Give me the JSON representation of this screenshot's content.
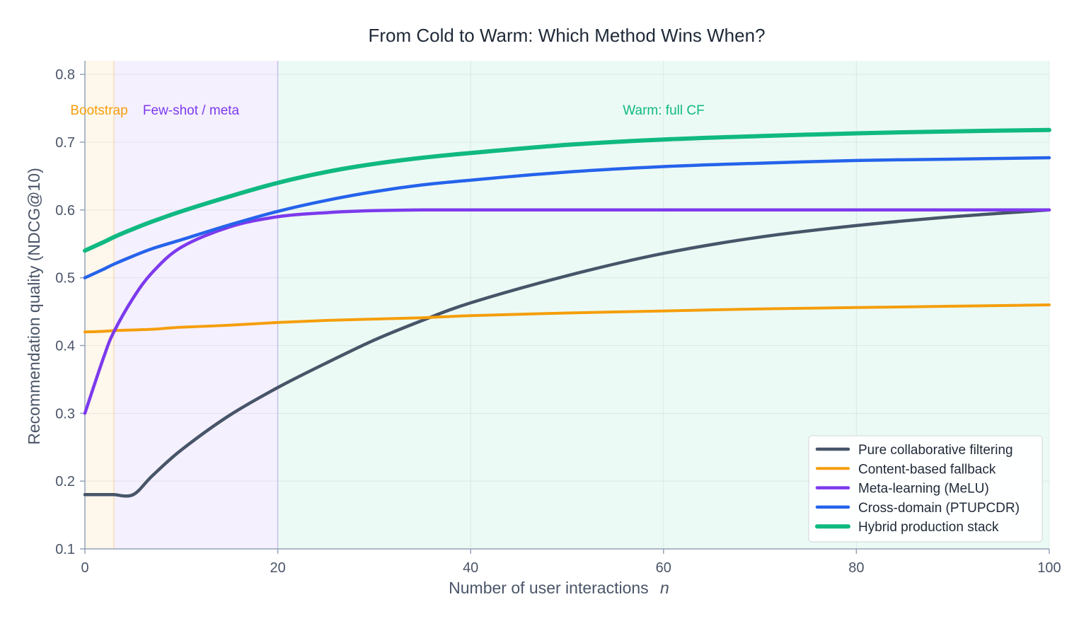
{
  "chart_data": {
    "type": "line",
    "title": "From Cold to Warm: Which Method Wins When?",
    "xlabel": "Number of user interactions",
    "xlabel_var": "n",
    "ylabel": "Recommendation quality (NDCG@10)",
    "xlim": [
      0,
      100
    ],
    "ylim": [
      0.1,
      0.82
    ],
    "x_ticks": [
      0,
      20,
      40,
      60,
      80,
      100
    ],
    "y_ticks": [
      0.1,
      0.2,
      0.3,
      0.4,
      0.5,
      0.6,
      0.7,
      0.8
    ],
    "grid": true,
    "legend_position": "bottom-right",
    "regions": [
      {
        "label": "Bootstrap",
        "x_start": 0,
        "x_end": 3,
        "color": "#f59e0b"
      },
      {
        "label": "Few-shot / meta",
        "x_start": 3,
        "x_end": 20,
        "color": "#7c3aed"
      },
      {
        "label": "Warm: full CF",
        "x_start": 20,
        "x_end": 100,
        "color": "#10b981"
      }
    ],
    "x": [
      0,
      2,
      3,
      5,
      7,
      10,
      15,
      20,
      25,
      30,
      35,
      40,
      50,
      60,
      70,
      80,
      90,
      100
    ],
    "series": [
      {
        "name": "Pure collaborative filtering",
        "color": "#475569",
        "values": [
          0.18,
          0.18,
          0.18,
          0.18,
          0.208,
          0.246,
          0.297,
          0.338,
          0.374,
          0.408,
          0.437,
          0.463,
          0.503,
          0.536,
          0.56,
          0.577,
          0.59,
          0.6
        ]
      },
      {
        "name": "Content-based fallback",
        "color": "#f59e0b",
        "values": [
          0.42,
          0.421,
          0.422,
          0.423,
          0.424,
          0.427,
          0.43,
          0.434,
          0.437,
          0.439,
          0.441,
          0.444,
          0.448,
          0.451,
          0.454,
          0.456,
          0.458,
          0.46
        ]
      },
      {
        "name": "Meta-learning (MeLU)",
        "color": "#7c3aed",
        "values": [
          0.3,
          0.385,
          0.42,
          0.47,
          0.508,
          0.545,
          0.575,
          0.59,
          0.596,
          0.599,
          0.6,
          0.6,
          0.6,
          0.6,
          0.6,
          0.6,
          0.6,
          0.6
        ]
      },
      {
        "name": "Cross-domain (PTUPCDR)",
        "color": "#2563eb",
        "values": [
          0.5,
          0.513,
          0.52,
          0.532,
          0.543,
          0.556,
          0.578,
          0.598,
          0.614,
          0.627,
          0.637,
          0.644,
          0.656,
          0.664,
          0.669,
          0.673,
          0.675,
          0.677
        ]
      },
      {
        "name": "Hybrid production stack",
        "color": "#10b981",
        "values": [
          0.54,
          0.553,
          0.56,
          0.572,
          0.583,
          0.598,
          0.62,
          0.64,
          0.656,
          0.668,
          0.677,
          0.684,
          0.696,
          0.704,
          0.709,
          0.713,
          0.716,
          0.718
        ]
      }
    ]
  }
}
